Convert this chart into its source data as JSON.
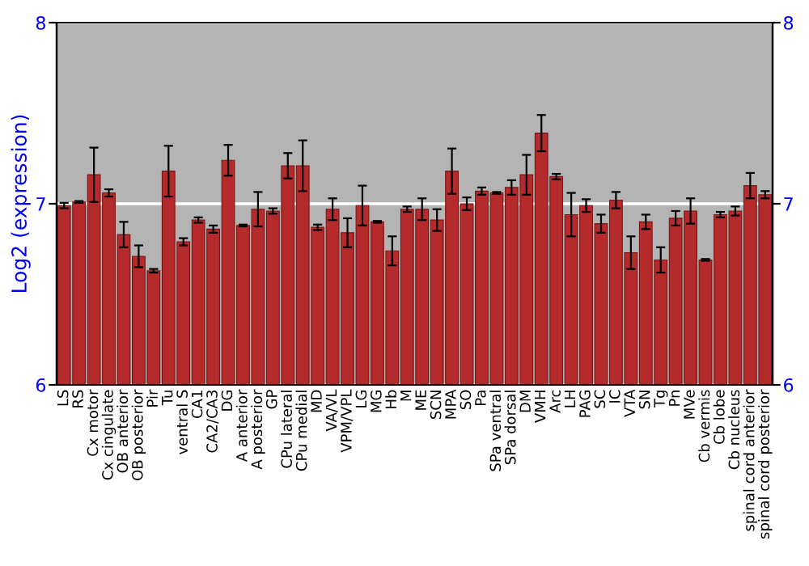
{
  "chart_data": {
    "type": "bar",
    "ylabel": "Log2 (expression)",
    "categories": [
      "LS",
      "RS",
      "Cx motor",
      "Cx cingulate",
      "OB anterior",
      "OB posterior",
      "Pir",
      "Tu",
      "ventral S",
      "CA1",
      "CA2/CA3",
      "DG",
      "A anterior",
      "A posterior",
      "GP",
      "CPu lateral",
      "CPu medial",
      "MD",
      "VA/VL",
      "VPM/VPL",
      "LG",
      "MG",
      "Hb",
      "M",
      "ME",
      "SCN",
      "MPA",
      "SO",
      "Pa",
      "SPa ventral",
      "SPa dorsal",
      "DM",
      "VMH",
      "Arc",
      "LH",
      "PAG",
      "SC",
      "IC",
      "VTA",
      "SN",
      "Tg",
      "Pn",
      "MVe",
      "Cb vermis",
      "Cb lobe",
      "Cb nucleus",
      "spinal cord anterior",
      "spinal cord posterior"
    ],
    "values": [
      6.99,
      7.01,
      7.16,
      7.06,
      6.83,
      6.71,
      6.63,
      7.18,
      6.79,
      6.91,
      6.86,
      7.24,
      6.88,
      6.97,
      6.96,
      7.21,
      7.21,
      6.87,
      6.97,
      6.84,
      6.99,
      6.9,
      6.74,
      6.97,
      6.97,
      6.91,
      7.18,
      7.0,
      7.07,
      7.06,
      7.09,
      7.16,
      7.39,
      7.15,
      6.94,
      6.99,
      6.89,
      7.02,
      6.73,
      6.9,
      6.69,
      6.92,
      6.96,
      6.69,
      6.94,
      6.96,
      7.1,
      7.05
    ],
    "errors": [
      0.015,
      0.005,
      0.15,
      0.02,
      0.07,
      0.06,
      0.01,
      0.14,
      0.02,
      0.015,
      0.02,
      0.085,
      0.005,
      0.095,
      0.015,
      0.07,
      0.14,
      0.015,
      0.06,
      0.08,
      0.11,
      0.005,
      0.08,
      0.015,
      0.06,
      0.06,
      0.125,
      0.035,
      0.02,
      0.005,
      0.04,
      0.11,
      0.1,
      0.015,
      0.12,
      0.035,
      0.05,
      0.045,
      0.09,
      0.04,
      0.07,
      0.04,
      0.07,
      0.005,
      0.015,
      0.025,
      0.07,
      0.02
    ],
    "color": "#b52a2a",
    "ylim": [
      6,
      8
    ],
    "yticks": [
      6,
      7,
      8
    ],
    "y2lim": [
      6,
      8
    ],
    "y2ticks": [
      6,
      7,
      8
    ],
    "grid": "y"
  }
}
